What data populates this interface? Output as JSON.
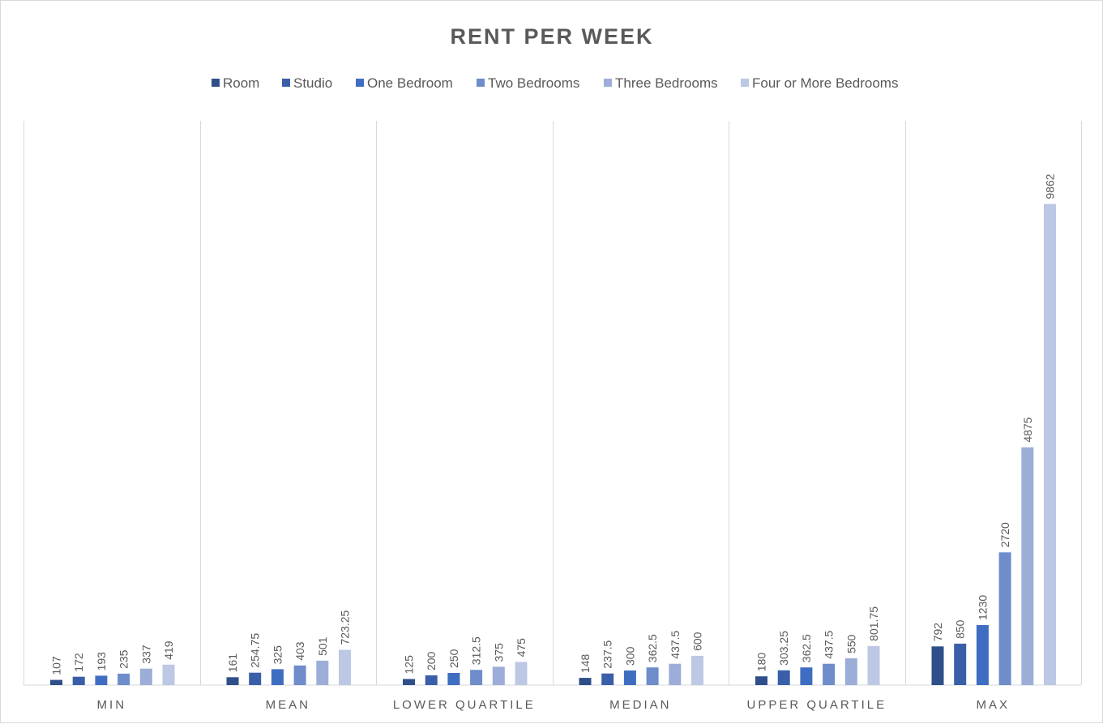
{
  "chart_data": {
    "type": "bar",
    "title": "RENT PER WEEK",
    "categories": [
      "MIN",
      "MEAN",
      "LOWER QUARTILE",
      "MEDIAN",
      "UPPER QUARTILE",
      "MAX"
    ],
    "series": [
      {
        "name": "Room",
        "color": "#2f4f8a",
        "values": [
          107,
          161,
          125,
          148,
          180,
          792
        ],
        "labels": [
          "107",
          "161",
          "125",
          "148",
          "180",
          "792"
        ]
      },
      {
        "name": "Studio",
        "color": "#3a5fa8",
        "values": [
          172,
          254.75,
          200,
          237.5,
          303.25,
          850
        ],
        "labels": [
          "172",
          "254.75",
          "200",
          "237.5",
          "303.25",
          "850"
        ]
      },
      {
        "name": "One Bedroom",
        "color": "#3f6dc2",
        "values": [
          193,
          325,
          250,
          300,
          362.5,
          1230
        ],
        "labels": [
          "193",
          "325",
          "250",
          "300",
          "362.5",
          "1230"
        ]
      },
      {
        "name": "Two Bedrooms",
        "color": "#6f8ccb",
        "values": [
          235,
          403,
          312.5,
          362.5,
          437.5,
          2720
        ],
        "labels": [
          "235",
          "403",
          "312.5",
          "362.5",
          "437.5",
          "2720"
        ]
      },
      {
        "name": "Three Bedrooms",
        "color": "#9cadd8",
        "values": [
          337,
          501,
          375,
          437.5,
          550,
          4875
        ],
        "labels": [
          "337",
          "501",
          "375",
          "437.5",
          "550",
          "4875"
        ]
      },
      {
        "name": "Four or More Bedrooms",
        "color": "#bcc8e4",
        "values": [
          419,
          723.25,
          475,
          600,
          801.75,
          9862
        ],
        "labels": [
          "419",
          "723.25",
          "475",
          "600",
          "801.75",
          "9862"
        ]
      }
    ],
    "ylim": [
      0,
      12000
    ],
    "legend": "top",
    "grid": false,
    "xlabel": "",
    "ylabel": ""
  }
}
